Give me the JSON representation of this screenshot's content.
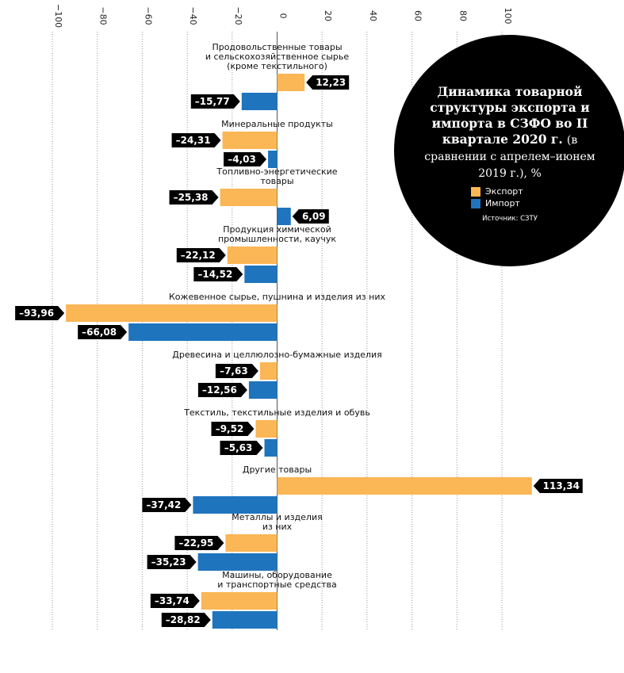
{
  "chart_data": {
    "type": "hbar",
    "title": "Динамика товарной структуры экспорта и импорта в СЗФО во II квартале 2020 г.",
    "subtitle": "(в сравнении с апрелем–июнем 2019 г.), %",
    "source": "Источник: СЗТУ",
    "categories": [
      "Продовольственные товары\nи сельскохозяйственное сырье\n(кроме текстильного)",
      "Минеральные продукты",
      "Топливно-энергетические\nтовары",
      "Продукция химической\nпромышленности, каучук",
      "Кожевенное сырье, пушнина и изделия из них",
      "Древесина и целлюлозно-бумажные изделия",
      "Текстиль, текстильные изделия и обувь",
      "Другие товары",
      "Металлы и изделия\nиз них",
      "Машины, оборудование\nи транспортные средства"
    ],
    "series": [
      {
        "name": "Экспорт",
        "color": "#fbb655",
        "values": [
          12.23,
          -24.31,
          -25.38,
          -22.12,
          -93.96,
          -7.63,
          -9.52,
          113.34,
          -22.95,
          -33.74
        ],
        "value_labels": [
          "12,23",
          "–24,31",
          "–25,38",
          "–22,12",
          "–93,96",
          "–7,63",
          "–9,52",
          "113,34",
          "–22,95",
          "–33,74"
        ]
      },
      {
        "name": "Импорт",
        "color": "#1f74be",
        "values": [
          -15.77,
          -4.03,
          6.09,
          -14.52,
          -66.08,
          -12.56,
          -5.63,
          -37.42,
          -35.23,
          -28.82
        ],
        "value_labels": [
          "–15,77",
          "–4,03",
          "6,09",
          "–14,52",
          "–66,08",
          "–12,56",
          "–5,63",
          "–37,42",
          "–35,23",
          "–28,82"
        ]
      }
    ],
    "xlim": [
      -100,
      100
    ],
    "xticks": [
      {
        "value": -100,
        "label": "−100"
      },
      {
        "value": -80,
        "label": "−80"
      },
      {
        "value": -60,
        "label": "−60"
      },
      {
        "value": -40,
        "label": "−40"
      },
      {
        "value": -20,
        "label": "−20"
      },
      0,
      20,
      40,
      60,
      80,
      100
    ],
    "grid": true
  }
}
